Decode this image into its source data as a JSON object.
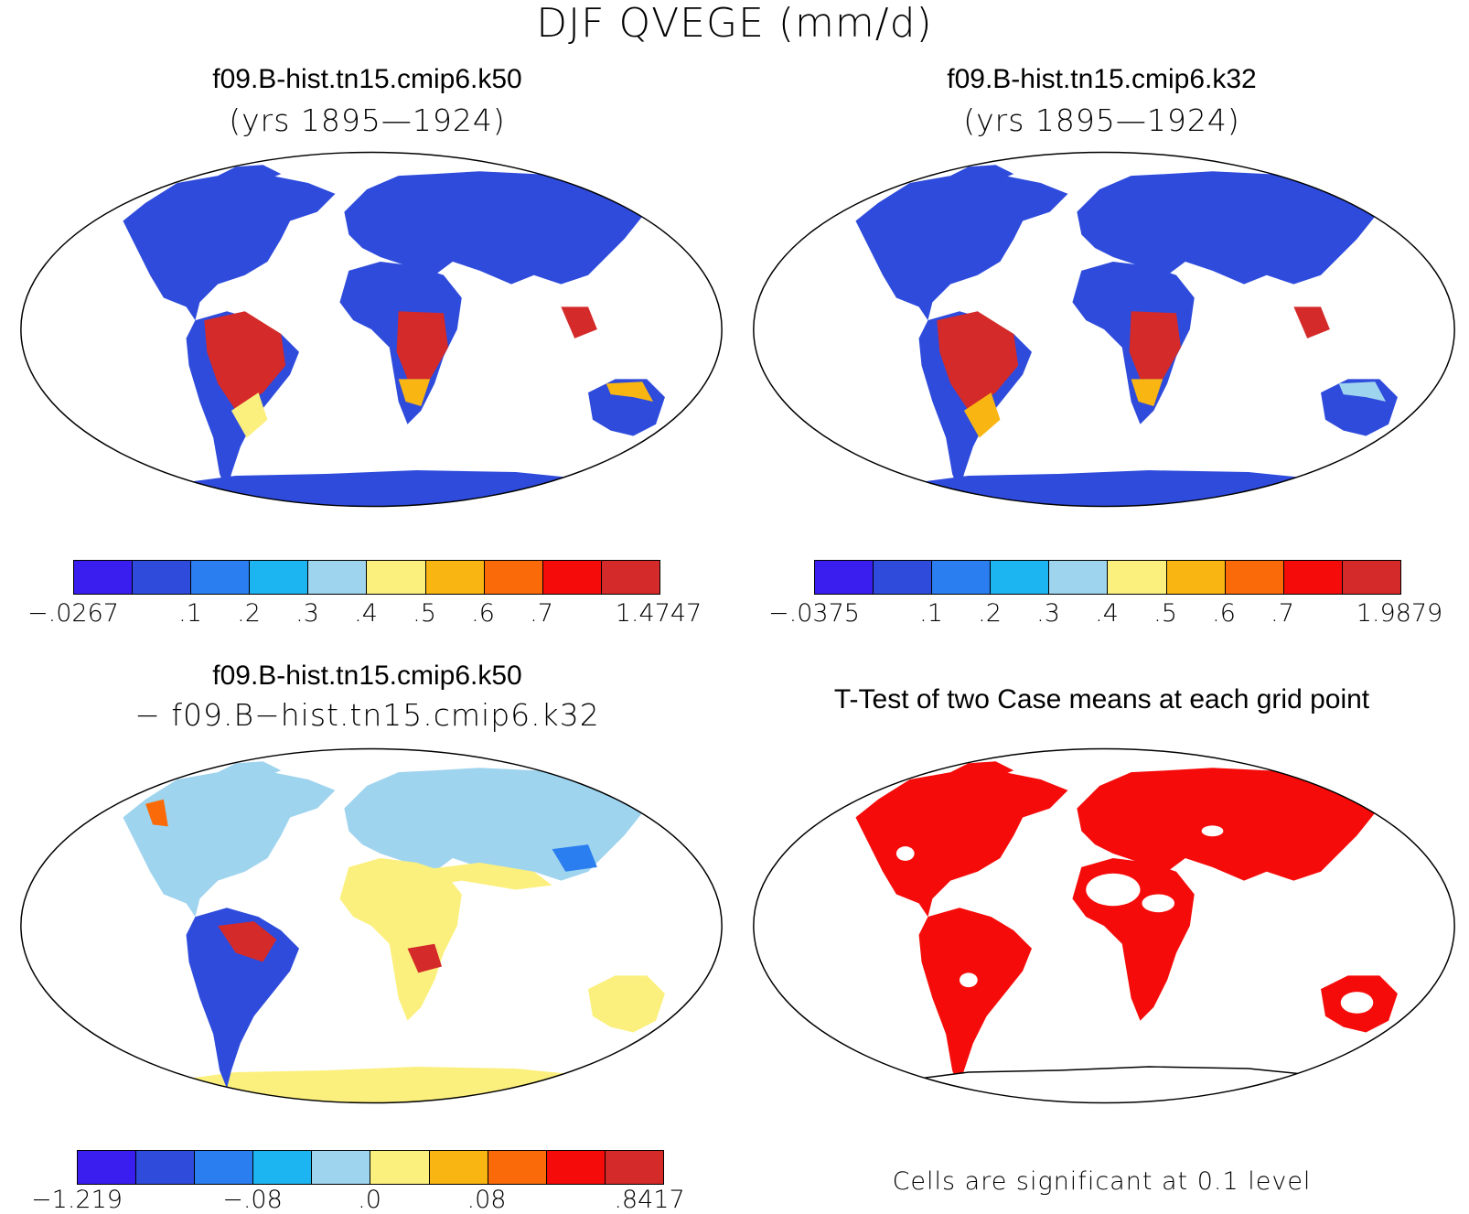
{
  "figure": {
    "main_title": "DJF QVEGE (mm/d)"
  },
  "panels": [
    {
      "title": "f09.B-hist.tn15.cmip6.k50",
      "subtitle": "(yrs 1895—1924)",
      "colorbar": {
        "colors": [
          "#3a1ef0",
          "#2e4bdc",
          "#2a7ef0",
          "#1db4f2",
          "#9fd4ef",
          "#fbf07e",
          "#f9b512",
          "#fa6a08",
          "#f50c0a",
          "#d42a2a"
        ],
        "labels": [
          "−.0267",
          ".1",
          ".2",
          ".3",
          ".4",
          ".5",
          ".6",
          ".7",
          "1.4747"
        ]
      }
    },
    {
      "title": "f09.B-hist.tn15.cmip6.k32",
      "subtitle": "(yrs 1895—1924)",
      "colorbar": {
        "colors": [
          "#3a1ef0",
          "#2e4bdc",
          "#2a7ef0",
          "#1db4f2",
          "#9fd4ef",
          "#fbf07e",
          "#f9b512",
          "#fa6a08",
          "#f50c0a",
          "#d42a2a"
        ],
        "labels": [
          "−.0375",
          ".1",
          ".2",
          ".3",
          ".4",
          ".5",
          ".6",
          ".7",
          "1.9879"
        ]
      }
    },
    {
      "title": "f09.B-hist.tn15.cmip6.k50",
      "subtitle": "− f09.B−hist.tn15.cmip6.k32",
      "colorbar": {
        "colors": [
          "#3a1ef0",
          "#2e4bdc",
          "#2a7ef0",
          "#1db4f2",
          "#9fd4ef",
          "#fbf07e",
          "#f9b512",
          "#fa6a08",
          "#f50c0a",
          "#d42a2a"
        ],
        "labels": [
          "−1.219",
          "−.08",
          ".0",
          ".08",
          ".8417"
        ]
      }
    },
    {
      "title": "T-Test of two Case means at each grid point",
      "note": "Cells are significant at 0.1 level",
      "color": "#f50c0a"
    }
  ]
}
